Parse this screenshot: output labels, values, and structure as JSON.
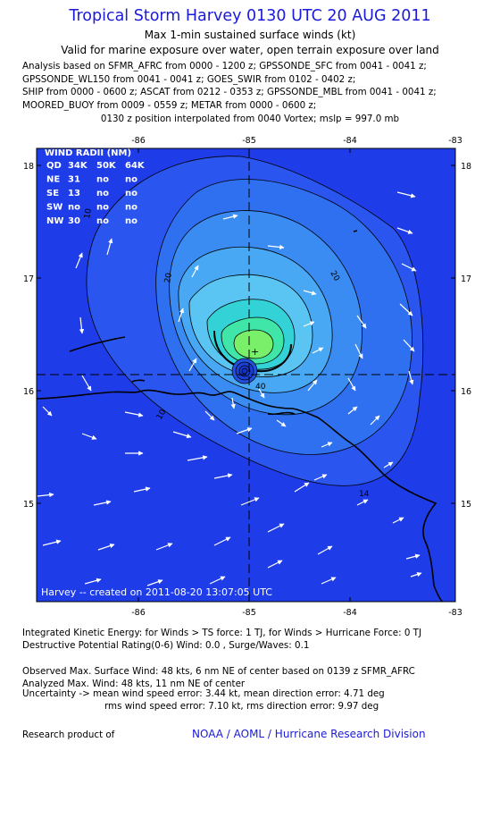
{
  "title": "Tropical Storm Harvey 0130 UTC 20 AUG 2011",
  "subtitle1": "Max 1-min sustained surface winds (kt)",
  "subtitle2": "Valid for marine exposure over water, open terrain exposure over land",
  "analysis_lines": [
    "Analysis based on SFMR_AFRC from 0000 - 1200 z; GPSSONDE_SFC from 0041 - 0041 z;",
    "GPSSONDE_WL150 from 0041 - 0041 z; GOES_SWIR from 0102 - 0402 z;",
    "SHIP from 0000 - 0600 z; ASCAT from 0212 - 0353 z; GPSSONDE_MBL from 0041 - 0041 z;",
    "MOORED_BUOY from 0009 - 0559 z; METAR from 0000 - 0600 z;"
  ],
  "position_line": "0130 z position interpolated from 0040 Vortex; mslp = 997.0 mb",
  "map": {
    "lon_ticks": [
      "-86",
      "-85",
      "-84",
      "-83"
    ],
    "lat_ticks": [
      "18",
      "17",
      "16",
      "15"
    ],
    "contour_labels": [
      "20",
      "20",
      "10",
      "10",
      "40",
      "14"
    ],
    "center_marker": "+",
    "credit": "Harvey -- created on 2011-08-20 13:07:05 UTC",
    "wind_radii": {
      "title": "WIND RADII (NM)",
      "header": [
        "QD",
        "34K",
        "50K",
        "64K"
      ],
      "rows": [
        [
          "NE",
          "31",
          "no",
          "no"
        ],
        [
          "SE",
          "13",
          "no",
          "no"
        ],
        [
          "SW",
          "no",
          "no",
          "no"
        ],
        [
          "NW",
          "30",
          "no",
          "no"
        ]
      ]
    },
    "colors": {
      "ocean": "#1e3ce8",
      "band1": "#2a55ee",
      "band2": "#2f70f0",
      "band3": "#3a8cf2",
      "band4": "#48a8f4",
      "band5": "#5ac4f2",
      "band6": "#33d2d6",
      "band7": "#3fe6a8",
      "core": "#7af06a",
      "vortex": "#1438d0"
    }
  },
  "footer": {
    "ike": "Integrated Kinetic Energy:  for Winds > TS force: 1 TJ,  for Winds > Hurricane Force: 0 TJ",
    "dpr": "Destructive Potential Rating(0-6)   Wind: 0.0 , Surge/Waves: 0.1",
    "obs_max": "Observed Max. Surface Wind: 48 kts, 6 nm NE of center based on 0139 z SFMR_AFRC",
    "analyzed_max": "Analyzed Max. Wind: 48 kts, 11 nm NE of center",
    "uncertainty1": "Uncertainty -> mean wind speed error: 3.44 kt,   mean direction error: 4.71 deg",
    "uncertainty2": "rms wind speed error: 7.10 kt,   rms direction error: 9.97 deg",
    "research": "Research product of",
    "noaa": "NOAA / AOML / Hurricane Research Division"
  }
}
